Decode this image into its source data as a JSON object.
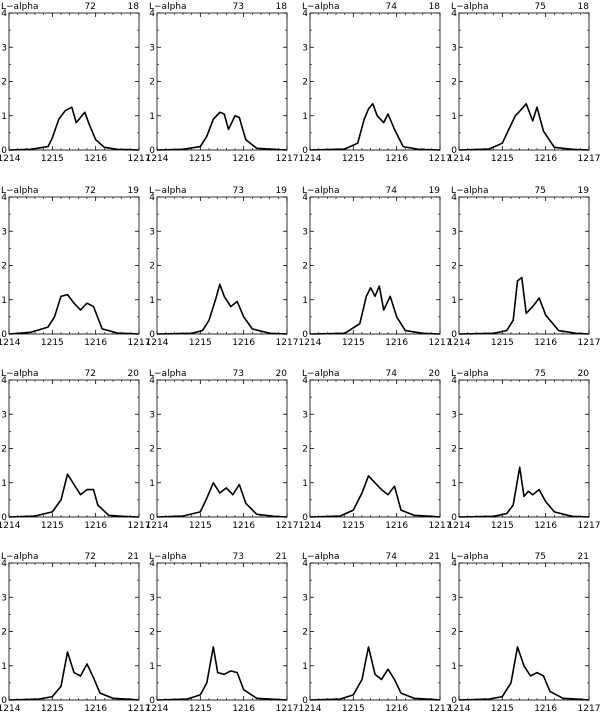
{
  "figure": {
    "panel_label": "L−alpha"
  },
  "chart_data": [
    {
      "type": "line",
      "title": "L−alpha",
      "run": "72",
      "frame": "18",
      "xlim": [
        1214,
        1217
      ],
      "ylim": [
        0,
        4
      ],
      "xticks": [
        "1214",
        "1215",
        "1216",
        "1217"
      ],
      "yticks": [
        "0",
        "1",
        "2",
        "3",
        "4"
      ],
      "x": [
        1214.0,
        1214.5,
        1214.9,
        1215.0,
        1215.15,
        1215.3,
        1215.45,
        1215.55,
        1215.65,
        1215.75,
        1215.85,
        1216.0,
        1216.2,
        1216.5,
        1217.0
      ],
      "y": [
        0.0,
        0.02,
        0.1,
        0.35,
        0.9,
        1.15,
        1.25,
        0.8,
        0.95,
        1.1,
        0.75,
        0.3,
        0.08,
        0.02,
        0.0
      ]
    },
    {
      "type": "line",
      "title": "L−alpha",
      "run": "73",
      "frame": "18",
      "xlim": [
        1214,
        1217
      ],
      "ylim": [
        0,
        4
      ],
      "xticks": [
        "1214",
        "1215",
        "1216",
        "1217"
      ],
      "yticks": [
        "0",
        "1",
        "2",
        "3",
        "4"
      ],
      "x": [
        1214.0,
        1214.6,
        1215.0,
        1215.15,
        1215.3,
        1215.45,
        1215.55,
        1215.65,
        1215.8,
        1215.9,
        1216.05,
        1216.3,
        1217.0
      ],
      "y": [
        0.0,
        0.02,
        0.1,
        0.4,
        0.9,
        1.1,
        1.05,
        0.6,
        1.0,
        0.95,
        0.3,
        0.05,
        0.0
      ]
    },
    {
      "type": "line",
      "title": "L−alpha",
      "run": "74",
      "frame": "18",
      "xlim": [
        1214,
        1217
      ],
      "ylim": [
        0,
        4
      ],
      "xticks": [
        "1214",
        "1215",
        "1216",
        "1217"
      ],
      "yticks": [
        "0",
        "1",
        "2",
        "3",
        "4"
      ],
      "x": [
        1214.0,
        1214.8,
        1215.1,
        1215.25,
        1215.35,
        1215.45,
        1215.55,
        1215.7,
        1215.8,
        1215.95,
        1216.15,
        1216.5,
        1217.0
      ],
      "y": [
        0.0,
        0.03,
        0.2,
        0.9,
        1.2,
        1.35,
        1.0,
        0.8,
        1.05,
        0.6,
        0.1,
        0.02,
        0.0
      ]
    },
    {
      "type": "line",
      "title": "L−alpha",
      "run": "75",
      "frame": "18",
      "xlim": [
        1214,
        1217
      ],
      "ylim": [
        0,
        4
      ],
      "xticks": [
        "1214",
        "1215",
        "1216",
        "1217"
      ],
      "yticks": [
        "0",
        "1",
        "2",
        "3",
        "4"
      ],
      "x": [
        1214.0,
        1214.7,
        1215.0,
        1215.15,
        1215.3,
        1215.45,
        1215.55,
        1215.7,
        1215.8,
        1215.95,
        1216.2,
        1216.6,
        1217.0
      ],
      "y": [
        0.0,
        0.03,
        0.2,
        0.6,
        1.0,
        1.2,
        1.35,
        0.85,
        1.25,
        0.55,
        0.08,
        0.02,
        0.0
      ]
    },
    {
      "type": "line",
      "title": "L−alpha",
      "run": "72",
      "frame": "19",
      "xlim": [
        1214,
        1217
      ],
      "ylim": [
        0,
        4
      ],
      "xticks": [
        "1214",
        "1215",
        "1216",
        "1217"
      ],
      "yticks": [
        "0",
        "1",
        "2",
        "3",
        "4"
      ],
      "x": [
        1214.0,
        1214.5,
        1214.9,
        1215.05,
        1215.2,
        1215.35,
        1215.5,
        1215.65,
        1215.8,
        1215.95,
        1216.15,
        1216.5,
        1217.0
      ],
      "y": [
        0.0,
        0.05,
        0.2,
        0.5,
        1.1,
        1.15,
        0.9,
        0.7,
        0.9,
        0.8,
        0.15,
        0.03,
        0.0
      ]
    },
    {
      "type": "line",
      "title": "L−alpha",
      "run": "73",
      "frame": "19",
      "xlim": [
        1214,
        1217
      ],
      "ylim": [
        0,
        4
      ],
      "xticks": [
        "1214",
        "1215",
        "1216",
        "1217"
      ],
      "yticks": [
        "0",
        "1",
        "2",
        "3",
        "4"
      ],
      "x": [
        1214.0,
        1214.8,
        1215.05,
        1215.2,
        1215.35,
        1215.45,
        1215.55,
        1215.7,
        1215.85,
        1216.0,
        1216.2,
        1216.6,
        1217.0
      ],
      "y": [
        0.0,
        0.02,
        0.1,
        0.4,
        1.0,
        1.45,
        1.1,
        0.8,
        0.95,
        0.5,
        0.15,
        0.02,
        0.0
      ]
    },
    {
      "type": "line",
      "title": "L−alpha",
      "run": "74",
      "frame": "19",
      "xlim": [
        1214,
        1217
      ],
      "ylim": [
        0,
        4
      ],
      "xticks": [
        "1214",
        "1215",
        "1216",
        "1217"
      ],
      "yticks": [
        "0",
        "1",
        "2",
        "3",
        "4"
      ],
      "x": [
        1214.0,
        1214.8,
        1215.15,
        1215.3,
        1215.4,
        1215.5,
        1215.6,
        1215.7,
        1215.85,
        1216.0,
        1216.2,
        1216.6,
        1217.0
      ],
      "y": [
        0.0,
        0.02,
        0.3,
        1.1,
        1.35,
        1.1,
        1.4,
        0.7,
        1.1,
        0.5,
        0.1,
        0.02,
        0.0
      ]
    },
    {
      "type": "line",
      "title": "L−alpha",
      "run": "75",
      "frame": "19",
      "xlim": [
        1214,
        1217
      ],
      "ylim": [
        0,
        4
      ],
      "xticks": [
        "1214",
        "1215",
        "1216",
        "1217"
      ],
      "yticks": [
        "0",
        "1",
        "2",
        "3",
        "4"
      ],
      "x": [
        1214.0,
        1214.8,
        1215.1,
        1215.25,
        1215.35,
        1215.45,
        1215.55,
        1215.7,
        1215.85,
        1216.0,
        1216.3,
        1216.7,
        1217.0
      ],
      "y": [
        0.0,
        0.02,
        0.1,
        0.4,
        1.55,
        1.65,
        0.6,
        0.8,
        1.05,
        0.55,
        0.1,
        0.02,
        0.0
      ]
    },
    {
      "type": "line",
      "title": "L−alpha",
      "run": "72",
      "frame": "20",
      "xlim": [
        1214,
        1217
      ],
      "ylim": [
        0,
        4
      ],
      "xticks": [
        "1214",
        "1215",
        "1216",
        "1217"
      ],
      "yticks": [
        "0",
        "1",
        "2",
        "3",
        "4"
      ],
      "x": [
        1214.0,
        1214.6,
        1215.0,
        1215.2,
        1215.35,
        1215.5,
        1215.65,
        1215.8,
        1215.95,
        1216.05,
        1216.3,
        1216.6,
        1217.0
      ],
      "y": [
        0.0,
        0.03,
        0.15,
        0.5,
        1.25,
        0.95,
        0.65,
        0.8,
        0.8,
        0.35,
        0.05,
        0.02,
        0.0
      ]
    },
    {
      "type": "line",
      "title": "L−alpha",
      "run": "73",
      "frame": "20",
      "xlim": [
        1214,
        1217
      ],
      "ylim": [
        0,
        4
      ],
      "xticks": [
        "1214",
        "1215",
        "1216",
        "1217"
      ],
      "yticks": [
        "0",
        "1",
        "2",
        "3",
        "4"
      ],
      "x": [
        1214.0,
        1214.6,
        1215.0,
        1215.15,
        1215.3,
        1215.45,
        1215.6,
        1215.75,
        1215.9,
        1216.05,
        1216.3,
        1216.7,
        1217.0
      ],
      "y": [
        0.0,
        0.03,
        0.15,
        0.55,
        1.0,
        0.7,
        0.85,
        0.65,
        0.95,
        0.4,
        0.08,
        0.02,
        0.0
      ]
    },
    {
      "type": "line",
      "title": "L−alpha",
      "run": "74",
      "frame": "20",
      "xlim": [
        1214,
        1217
      ],
      "ylim": [
        0,
        4
      ],
      "xticks": [
        "1214",
        "1215",
        "1216",
        "1217"
      ],
      "yticks": [
        "0",
        "1",
        "2",
        "3",
        "4"
      ],
      "x": [
        1214.0,
        1214.7,
        1215.0,
        1215.2,
        1215.35,
        1215.5,
        1215.65,
        1215.8,
        1215.95,
        1216.1,
        1216.4,
        1216.8,
        1217.0
      ],
      "y": [
        0.0,
        0.03,
        0.2,
        0.7,
        1.2,
        1.0,
        0.8,
        0.65,
        0.9,
        0.2,
        0.05,
        0.02,
        0.0
      ]
    },
    {
      "type": "line",
      "title": "L−alpha",
      "run": "75",
      "frame": "20",
      "xlim": [
        1214,
        1217
      ],
      "ylim": [
        0,
        4
      ],
      "xticks": [
        "1214",
        "1215",
        "1216",
        "1217"
      ],
      "yticks": [
        "0",
        "1",
        "2",
        "3",
        "4"
      ],
      "x": [
        1214.0,
        1214.8,
        1215.1,
        1215.25,
        1215.4,
        1215.5,
        1215.6,
        1215.7,
        1215.85,
        1216.0,
        1216.2,
        1216.6,
        1217.0
      ],
      "y": [
        0.0,
        0.02,
        0.1,
        0.35,
        1.45,
        0.6,
        0.75,
        0.65,
        0.8,
        0.45,
        0.15,
        0.02,
        0.0
      ]
    },
    {
      "type": "line",
      "title": "L−alpha",
      "run": "72",
      "frame": "21",
      "xlim": [
        1214,
        1217
      ],
      "ylim": [
        0,
        4
      ],
      "xticks": [
        "1214",
        "1215",
        "1216",
        "1217"
      ],
      "yticks": [
        "0",
        "1",
        "2",
        "3",
        "4"
      ],
      "x": [
        1214.0,
        1214.7,
        1215.0,
        1215.2,
        1215.35,
        1215.5,
        1215.65,
        1215.8,
        1215.95,
        1216.1,
        1216.4,
        1216.8,
        1217.0
      ],
      "y": [
        0.0,
        0.03,
        0.1,
        0.4,
        1.4,
        0.8,
        0.7,
        1.05,
        0.65,
        0.2,
        0.05,
        0.02,
        0.0
      ]
    },
    {
      "type": "line",
      "title": "L−alpha",
      "run": "73",
      "frame": "21",
      "xlim": [
        1214,
        1217
      ],
      "ylim": [
        0,
        4
      ],
      "xticks": [
        "1214",
        "1215",
        "1216",
        "1217"
      ],
      "yticks": [
        "0",
        "1",
        "2",
        "3",
        "4"
      ],
      "x": [
        1214.0,
        1214.7,
        1215.0,
        1215.15,
        1215.3,
        1215.4,
        1215.55,
        1215.7,
        1215.85,
        1216.0,
        1216.3,
        1216.7,
        1217.0
      ],
      "y": [
        0.0,
        0.03,
        0.15,
        0.5,
        1.55,
        0.8,
        0.75,
        0.85,
        0.8,
        0.3,
        0.05,
        0.02,
        0.0
      ]
    },
    {
      "type": "line",
      "title": "L−alpha",
      "run": "74",
      "frame": "21",
      "xlim": [
        1214,
        1217
      ],
      "ylim": [
        0,
        4
      ],
      "xticks": [
        "1214",
        "1215",
        "1216",
        "1217"
      ],
      "yticks": [
        "0",
        "1",
        "2",
        "3",
        "4"
      ],
      "x": [
        1214.0,
        1214.7,
        1215.0,
        1215.2,
        1215.35,
        1215.5,
        1215.65,
        1215.8,
        1215.95,
        1216.1,
        1216.4,
        1216.8,
        1217.0
      ],
      "y": [
        0.0,
        0.03,
        0.15,
        0.6,
        1.55,
        0.75,
        0.6,
        0.9,
        0.6,
        0.2,
        0.05,
        0.02,
        0.0
      ]
    },
    {
      "type": "line",
      "title": "L−alpha",
      "run": "75",
      "frame": "21",
      "xlim": [
        1214,
        1217
      ],
      "ylim": [
        0,
        4
      ],
      "xticks": [
        "1214",
        "1215",
        "1216",
        "1217"
      ],
      "yticks": [
        "0",
        "1",
        "2",
        "3",
        "4"
      ],
      "x": [
        1214.0,
        1214.7,
        1215.0,
        1215.2,
        1215.35,
        1215.5,
        1215.65,
        1215.8,
        1215.95,
        1216.1,
        1216.4,
        1216.8,
        1217.0
      ],
      "y": [
        0.0,
        0.03,
        0.1,
        0.5,
        1.55,
        1.0,
        0.7,
        0.8,
        0.7,
        0.25,
        0.05,
        0.02,
        0.0
      ]
    }
  ]
}
